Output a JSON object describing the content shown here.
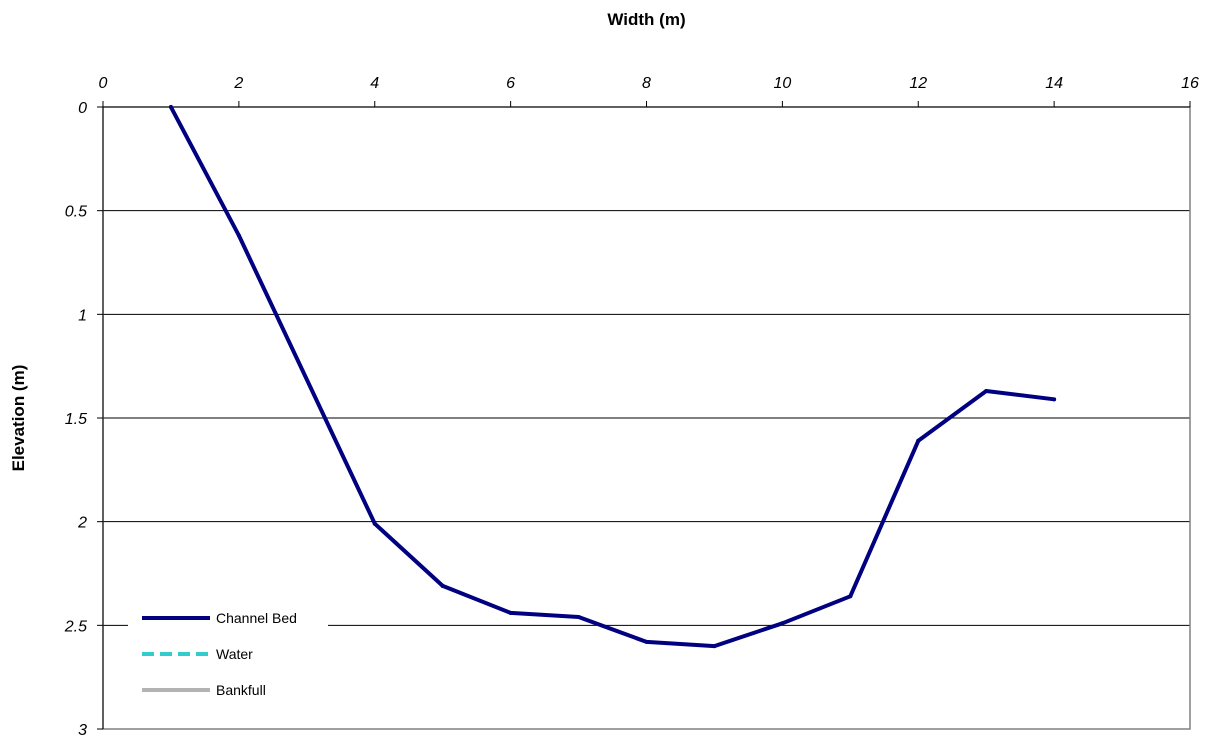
{
  "chart_data": {
    "type": "line",
    "xlabel": "Width (m)",
    "ylabel": "Elevation (m)",
    "xlim": [
      0,
      16
    ],
    "ylim": [
      0,
      3
    ],
    "y_inverted": true,
    "x_axis_position": "top",
    "x_ticks": [
      "0",
      "2",
      "4",
      "6",
      "8",
      "10",
      "12",
      "14",
      "16"
    ],
    "y_ticks": [
      "0",
      "0.5",
      "1",
      "1.5",
      "2",
      "2.5",
      "3"
    ],
    "grid": "horizontal",
    "legend_position": "bottom-left",
    "series": [
      {
        "name": "Channel Bed",
        "color": "#000080",
        "style": "solid",
        "x": [
          1,
          2,
          4,
          5,
          6,
          7,
          8,
          9,
          10,
          11,
          12,
          13,
          14
        ],
        "y": [
          0,
          0.62,
          2.01,
          2.31,
          2.44,
          2.46,
          2.58,
          2.6,
          2.49,
          2.36,
          1.61,
          1.37,
          1.41
        ]
      },
      {
        "name": "Water",
        "color": "#33cccc",
        "style": "dashed",
        "x": [],
        "y": []
      },
      {
        "name": "Bankfull",
        "color": "#b3b3b3",
        "style": "solid",
        "x": [],
        "y": []
      }
    ]
  }
}
